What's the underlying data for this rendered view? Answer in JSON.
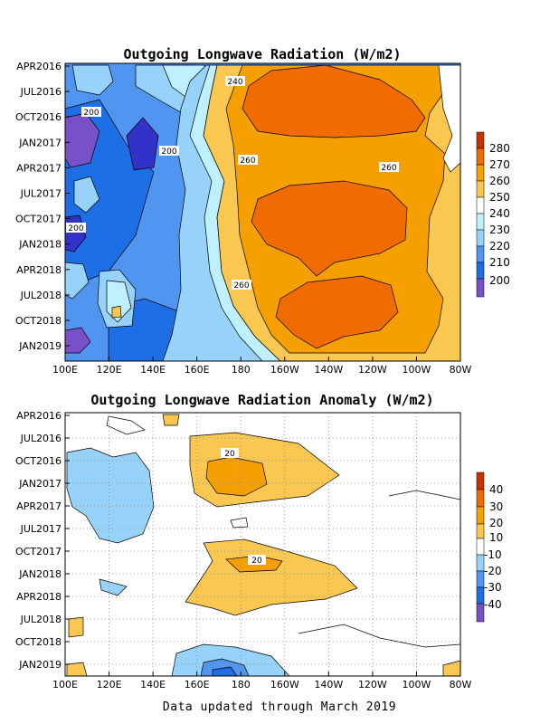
{
  "chart_data": [
    {
      "type": "heatmap",
      "title": "Outgoing Longwave Radiation (W/m2)",
      "x_ticks": [
        "100E",
        "120E",
        "140E",
        "160E",
        "180",
        "160W",
        "140W",
        "120W",
        "100W",
        "80W"
      ],
      "y_ticks": [
        "APR2016",
        "JUL2016",
        "OCT2016",
        "JAN2017",
        "APR2017",
        "JUL2017",
        "OCT2017",
        "JAN2018",
        "APR2018",
        "JUL2018",
        "OCT2018",
        "JAN2019"
      ],
      "colorbar": {
        "labels": [
          "280",
          "270",
          "260",
          "250",
          "240",
          "230",
          "220",
          "210",
          "200"
        ],
        "colors": [
          "#c83200",
          "#f06c00",
          "#f5a000",
          "#fac850",
          "#ffffff",
          "#bff0ff",
          "#96d2fa",
          "#5096f0",
          "#1e6ee6",
          "#3232c8",
          "#7850c8"
        ]
      },
      "contour_labels": [
        {
          "text": "240",
          "lon": 179,
          "date": "2016-06"
        },
        {
          "text": "200",
          "lon": 124,
          "date": "2016-10"
        },
        {
          "text": "200",
          "lon": 155,
          "date": "2017-02"
        },
        {
          "text": "260",
          "lon": 190,
          "date": "2017-03"
        },
        {
          "text": "260",
          "lon": 247,
          "date": "2017-04"
        },
        {
          "text": "200",
          "lon": 107,
          "date": "2017-12"
        },
        {
          "text": "260",
          "lon": 179,
          "date": "2018-06"
        }
      ],
      "grid": false
    },
    {
      "type": "heatmap",
      "title": "Outgoing Longwave Radiation Anomaly (W/m2)",
      "x_ticks": [
        "100E",
        "120E",
        "140E",
        "160E",
        "180",
        "160W",
        "140W",
        "120W",
        "100W",
        "80W"
      ],
      "y_ticks": [
        "APR2016",
        "JUL2016",
        "OCT2016",
        "JAN2017",
        "APR2017",
        "JUL2017",
        "OCT2017",
        "JAN2018",
        "APR2018",
        "JUL2018",
        "OCT2018",
        "JAN2019"
      ],
      "colorbar": {
        "labels": [
          "40",
          "30",
          "20",
          "10",
          "-10",
          "-20",
          "-30",
          "-40"
        ],
        "colors": [
          "#c83200",
          "#f06c00",
          "#f5a000",
          "#fac850",
          "#ffffff",
          "#96d2fa",
          "#5096f0",
          "#1e6ee6",
          "#7850c8"
        ]
      },
      "contour_labels": [
        {
          "text": "20",
          "lon": 185,
          "date": "2016-11"
        },
        {
          "text": "20",
          "lon": 191,
          "date": "2017-12"
        }
      ],
      "grid": true
    }
  ],
  "footer": "Data updated through March 2019"
}
